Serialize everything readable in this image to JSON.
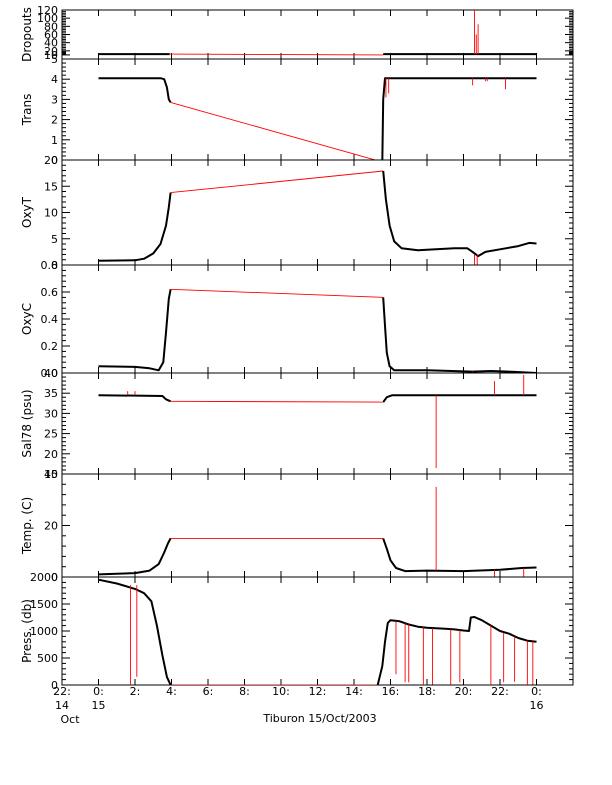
{
  "title": "Tiburon 15/Oct/2003",
  "x_ticks": [
    {
      "top": "22:",
      "bot": "14",
      "bot2": "Oct",
      "t": 22
    },
    {
      "top": "0:",
      "bot": "15",
      "t": 24
    },
    {
      "top": "2:",
      "t": 26
    },
    {
      "top": "4:",
      "t": 28
    },
    {
      "top": "6:",
      "t": 30
    },
    {
      "top": "8:",
      "t": 32
    },
    {
      "top": "10:",
      "t": 34
    },
    {
      "top": "12:",
      "t": 36
    },
    {
      "top": "14:",
      "t": 38
    },
    {
      "top": "16:",
      "t": 40
    },
    {
      "top": "18:",
      "t": 42
    },
    {
      "top": "20:",
      "t": 44
    },
    {
      "top": "22:",
      "t": 46
    },
    {
      "top": "0:",
      "bot": "16",
      "t": 48
    }
  ],
  "colors": {
    "data": "#000000",
    "gap": "#ff0000"
  },
  "chart_data": [
    {
      "type": "line",
      "ylabel": "Dropouts",
      "ylim": [
        0,
        120
      ],
      "yticks": [
        {
          "v": 10,
          "label": "10"
        },
        {
          "v": 20,
          "label": "20"
        },
        {
          "v": 40,
          "label": "40"
        },
        {
          "v": 60,
          "label": "60"
        },
        {
          "v": 80,
          "label": "80"
        },
        {
          "v": 100,
          "label": "100"
        },
        {
          "v": 120,
          "label": "120"
        }
      ],
      "series": [
        {
          "kind": "data",
          "points": [
            [
              24.0,
              12
            ],
            [
              27.9,
              12
            ]
          ]
        },
        {
          "kind": "gap",
          "points": [
            [
              27.9,
              12
            ],
            [
              39.6,
              10
            ]
          ]
        },
        {
          "kind": "data",
          "points": [
            [
              39.6,
              12
            ],
            [
              48.0,
              12
            ]
          ]
        }
      ],
      "spikes": [
        [
          44.6,
          12,
          120
        ],
        [
          44.7,
          12,
          60
        ],
        [
          44.8,
          12,
          85
        ]
      ]
    },
    {
      "type": "line",
      "ylabel": "Trans",
      "ylim": [
        0,
        5
      ],
      "yticks": [
        {
          "v": 0,
          "label": "0"
        },
        {
          "v": 1,
          "label": "1"
        },
        {
          "v": 2,
          "label": "2"
        },
        {
          "v": 3,
          "label": "3"
        },
        {
          "v": 4,
          "label": "4"
        },
        {
          "v": 5,
          "label": "5"
        }
      ],
      "series": [
        {
          "kind": "data",
          "points": [
            [
              24.0,
              4.05
            ],
            [
              27.4,
              4.05
            ],
            [
              27.6,
              4.0
            ],
            [
              27.75,
              3.6
            ],
            [
              27.85,
              3.0
            ],
            [
              27.95,
              2.85
            ]
          ]
        },
        {
          "kind": "gap",
          "points": [
            [
              27.95,
              2.85
            ],
            [
              39.55,
              -0.1
            ]
          ]
        },
        {
          "kind": "data",
          "points": [
            [
              39.55,
              -0.1
            ],
            [
              39.6,
              3.0
            ],
            [
              39.7,
              4.05
            ],
            [
              48.0,
              4.05
            ]
          ]
        }
      ],
      "spikes": [
        [
          39.75,
          4.05,
          3.1
        ],
        [
          39.9,
          4.05,
          3.3
        ],
        [
          44.5,
          4.05,
          3.7
        ],
        [
          45.2,
          4.05,
          3.9
        ],
        [
          45.3,
          4.05,
          3.9
        ],
        [
          46.3,
          4.05,
          3.5
        ]
      ]
    },
    {
      "type": "line",
      "ylabel": "OxyT",
      "ylim": [
        0,
        20
      ],
      "yticks": [
        {
          "v": 0,
          "label": "0"
        },
        {
          "v": 5,
          "label": "5"
        },
        {
          "v": 10,
          "label": "10"
        },
        {
          "v": 15,
          "label": "15"
        },
        {
          "v": 20,
          "label": "20"
        }
      ],
      "series": [
        {
          "kind": "data",
          "points": [
            [
              24.0,
              0.8
            ],
            [
              26.0,
              0.9
            ],
            [
              26.5,
              1.2
            ],
            [
              27.0,
              2.2
            ],
            [
              27.4,
              4.0
            ],
            [
              27.7,
              7.5
            ],
            [
              27.85,
              11.0
            ],
            [
              27.95,
              13.8
            ]
          ]
        },
        {
          "kind": "gap",
          "points": [
            [
              27.95,
              13.8
            ],
            [
              39.6,
              17.9
            ]
          ]
        },
        {
          "kind": "data",
          "points": [
            [
              39.6,
              17.9
            ],
            [
              39.75,
              12.5
            ],
            [
              39.95,
              7.5
            ],
            [
              40.2,
              4.5
            ],
            [
              40.6,
              3.2
            ],
            [
              41.5,
              2.8
            ],
            [
              42.5,
              3.0
            ],
            [
              43.5,
              3.2
            ],
            [
              44.2,
              3.2
            ],
            [
              44.5,
              2.5
            ],
            [
              44.8,
              1.7
            ],
            [
              45.2,
              2.5
            ],
            [
              46.0,
              3.0
            ],
            [
              47.0,
              3.6
            ],
            [
              47.6,
              4.2
            ],
            [
              48.0,
              4.1
            ]
          ]
        }
      ],
      "spikes": [
        [
          44.6,
          2.0,
          -1.0
        ],
        [
          44.75,
          2.0,
          -1.0
        ]
      ]
    },
    {
      "type": "line",
      "ylabel": "OxyC",
      "ylim": [
        0,
        0.8
      ],
      "yticks": [
        {
          "v": 0.0,
          "label": "0.0"
        },
        {
          "v": 0.2,
          "label": "0.2"
        },
        {
          "v": 0.4,
          "label": "0.4"
        },
        {
          "v": 0.6,
          "label": "0.6"
        },
        {
          "v": 0.8,
          "label": "0.8"
        }
      ],
      "series": [
        {
          "kind": "data",
          "points": [
            [
              24.0,
              0.05
            ],
            [
              26.0,
              0.045
            ],
            [
              26.8,
              0.035
            ],
            [
              27.3,
              0.02
            ],
            [
              27.55,
              0.08
            ],
            [
              27.7,
              0.3
            ],
            [
              27.85,
              0.55
            ],
            [
              27.95,
              0.62
            ]
          ]
        },
        {
          "kind": "gap",
          "points": [
            [
              27.95,
              0.62
            ],
            [
              39.6,
              0.56
            ]
          ]
        },
        {
          "kind": "data",
          "points": [
            [
              39.6,
              0.56
            ],
            [
              39.7,
              0.35
            ],
            [
              39.8,
              0.15
            ],
            [
              39.95,
              0.05
            ],
            [
              40.2,
              0.02
            ],
            [
              42.0,
              0.02
            ],
            [
              44.5,
              0.01
            ],
            [
              45.5,
              0.015
            ],
            [
              46.5,
              0.01
            ],
            [
              48.0,
              0.0
            ]
          ]
        }
      ],
      "spikes": [
        [
          44.5,
          0.01,
          -0.02
        ],
        [
          44.8,
          0.01,
          -0.02
        ]
      ]
    },
    {
      "type": "line",
      "ylabel": "Sal78 (psu)",
      "ylim": [
        15,
        40
      ],
      "yticks": [
        {
          "v": 15,
          "label": "15"
        },
        {
          "v": 20,
          "label": "20"
        },
        {
          "v": 25,
          "label": "25"
        },
        {
          "v": 30,
          "label": "30"
        },
        {
          "v": 35,
          "label": "35"
        },
        {
          "v": 40,
          "label": "40"
        }
      ],
      "series": [
        {
          "kind": "data",
          "points": [
            [
              24.0,
              34.5
            ],
            [
              27.5,
              34.3
            ],
            [
              27.7,
              33.5
            ],
            [
              27.95,
              33.0
            ]
          ]
        },
        {
          "kind": "gap",
          "points": [
            [
              27.95,
              33.0
            ],
            [
              39.6,
              32.8
            ]
          ]
        },
        {
          "kind": "data",
          "points": [
            [
              39.6,
              32.8
            ],
            [
              39.8,
              34.0
            ],
            [
              40.1,
              34.5
            ],
            [
              48.0,
              34.5
            ]
          ]
        }
      ],
      "spikes": [
        [
          25.6,
          34.5,
          35.5
        ],
        [
          26.0,
          34.5,
          35.5
        ],
        [
          42.5,
          34.5,
          16.5
        ],
        [
          45.7,
          34.5,
          38.0
        ],
        [
          47.3,
          34.5,
          39.5
        ]
      ]
    },
    {
      "type": "line",
      "ylabel": "Temp. (C)",
      "ylim": [
        0,
        40
      ],
      "yticks": [
        {
          "v": 0,
          "label": "0"
        },
        {
          "v": 20,
          "label": "20"
        },
        {
          "v": 40,
          "label": "40"
        }
      ],
      "series": [
        {
          "kind": "data",
          "points": [
            [
              24.0,
              1.0
            ],
            [
              26.0,
              1.5
            ],
            [
              26.8,
              2.5
            ],
            [
              27.3,
              5.0
            ],
            [
              27.6,
              9.5
            ],
            [
              27.8,
              13.0
            ],
            [
              27.95,
              15.0
            ]
          ]
        },
        {
          "kind": "gap",
          "points": [
            [
              27.95,
              15.0
            ],
            [
              39.6,
              15.0
            ]
          ]
        },
        {
          "kind": "data",
          "points": [
            [
              39.6,
              15.0
            ],
            [
              39.8,
              11.0
            ],
            [
              40.0,
              6.5
            ],
            [
              40.3,
              3.5
            ],
            [
              40.8,
              2.3
            ],
            [
              42.0,
              2.5
            ],
            [
              44.0,
              2.3
            ],
            [
              46.0,
              2.8
            ],
            [
              47.2,
              3.5
            ],
            [
              48.0,
              3.7
            ]
          ]
        }
      ],
      "spikes": [
        [
          42.5,
          2.5,
          35.0
        ],
        [
          45.7,
          2.8,
          0.0
        ],
        [
          47.3,
          3.5,
          0.0
        ]
      ]
    },
    {
      "type": "line",
      "ylabel": "Press. (db)",
      "ylim": [
        0,
        2000
      ],
      "yticks": [
        {
          "v": 0,
          "label": "0"
        },
        {
          "v": 500,
          "label": "500"
        },
        {
          "v": 1000,
          "label": "1000"
        },
        {
          "v": 1500,
          "label": "1500"
        },
        {
          "v": 2000,
          "label": "2000"
        }
      ],
      "series": [
        {
          "kind": "data",
          "points": [
            [
              24.0,
              1950
            ],
            [
              25.0,
              1880
            ],
            [
              26.0,
              1780
            ],
            [
              26.5,
              1700
            ],
            [
              26.9,
              1550
            ],
            [
              27.2,
              1100
            ],
            [
              27.5,
              550
            ],
            [
              27.75,
              150
            ],
            [
              27.95,
              0
            ]
          ]
        },
        {
          "kind": "gap",
          "points": [
            [
              27.95,
              0
            ],
            [
              39.3,
              0
            ]
          ]
        },
        {
          "kind": "data",
          "points": [
            [
              39.3,
              0
            ],
            [
              39.55,
              350
            ],
            [
              39.7,
              800
            ],
            [
              39.85,
              1150
            ],
            [
              40.0,
              1200
            ],
            [
              40.5,
              1180
            ],
            [
              41.0,
              1120
            ],
            [
              41.5,
              1080
            ],
            [
              42.0,
              1060
            ],
            [
              42.5,
              1050
            ],
            [
              43.0,
              1040
            ],
            [
              43.5,
              1030
            ],
            [
              44.0,
              1010
            ],
            [
              44.3,
              1000
            ],
            [
              44.4,
              1250
            ],
            [
              44.6,
              1260
            ],
            [
              45.0,
              1200
            ],
            [
              45.5,
              1100
            ],
            [
              46.0,
              1000
            ],
            [
              46.5,
              950
            ],
            [
              47.0,
              870
            ],
            [
              47.5,
              820
            ],
            [
              48.0,
              800
            ]
          ]
        }
      ],
      "spikes": [
        [
          25.75,
          1850,
          0
        ],
        [
          26.1,
          1850,
          150
        ],
        [
          40.3,
          1190,
          200
        ],
        [
          40.8,
          1150,
          50
        ],
        [
          41.0,
          1120,
          50
        ],
        [
          41.8,
          1070,
          0
        ],
        [
          42.3,
          1050,
          10
        ],
        [
          43.3,
          1030,
          0
        ],
        [
          43.8,
          1020,
          50
        ],
        [
          45.5,
          1100,
          0
        ],
        [
          46.2,
          960,
          50
        ],
        [
          46.8,
          900,
          60
        ],
        [
          47.5,
          820,
          0
        ],
        [
          47.8,
          810,
          10
        ]
      ]
    }
  ]
}
